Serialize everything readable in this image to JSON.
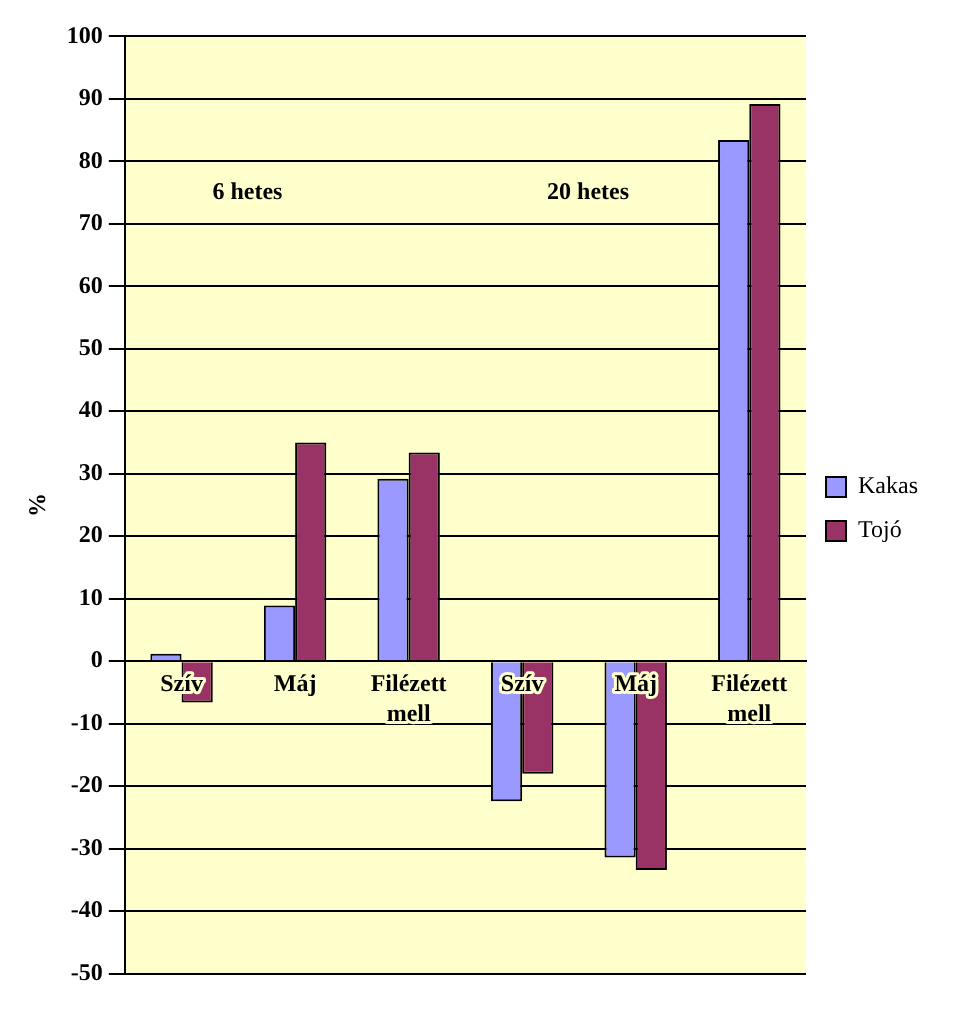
{
  "chart_data": {
    "type": "bar",
    "ylabel": "%",
    "categories": [
      "Szív",
      "Máj",
      "Filézett mell",
      "Szív",
      "Máj",
      "Filézett mell"
    ],
    "series": [
      {
        "name": "Kakas",
        "color": "#9999ff",
        "values": [
          1.2,
          8.9,
          29.2,
          -22.4,
          -31.4,
          83.4
        ]
      },
      {
        "name": "Tojó",
        "color": "#993366",
        "values": [
          -6.6,
          35.0,
          33.4,
          -18.0,
          -33.4,
          89.2
        ]
      }
    ],
    "ylim": [
      -50,
      100
    ],
    "yticks": [
      -50,
      -40,
      -30,
      -20,
      -10,
      0,
      10,
      20,
      30,
      40,
      50,
      60,
      70,
      80,
      90,
      100
    ],
    "grid": "y",
    "legend": "right",
    "annotations": [
      "6 hetes",
      "20 hetes"
    ]
  }
}
